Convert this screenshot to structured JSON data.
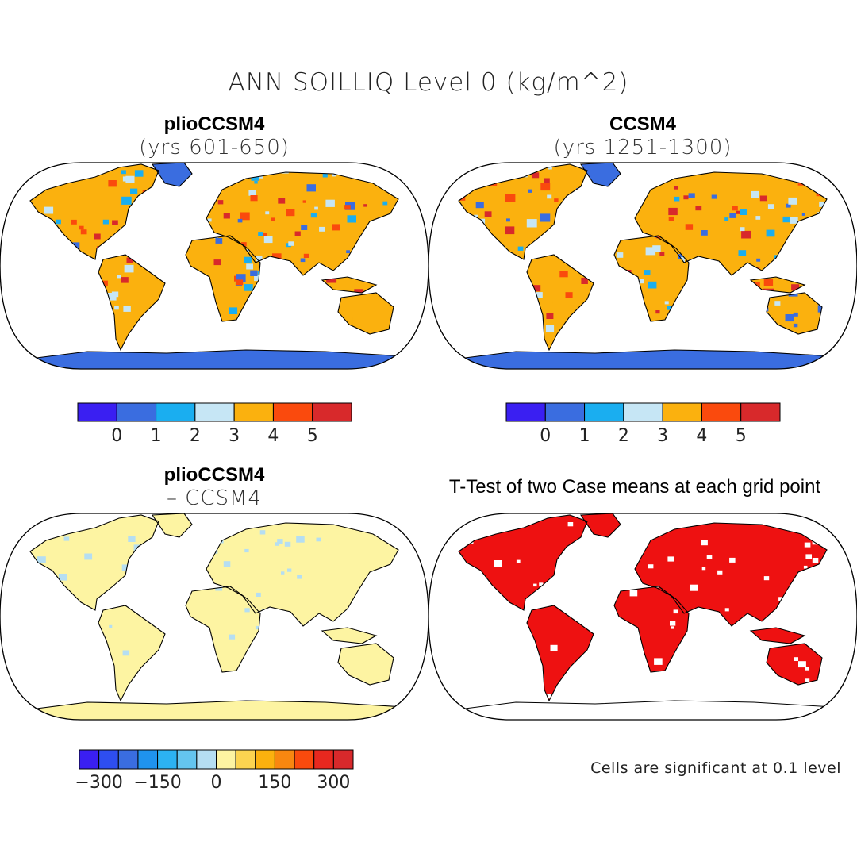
{
  "figure": {
    "title": "ANN SOILLIQ Level 0 (kg/m^2)"
  },
  "panels": [
    {
      "id": "plio",
      "title": "plioCCSM4",
      "subtitle": "(yrs 601-650)"
    },
    {
      "id": "ccsm",
      "title": "CCSM4",
      "subtitle": "(yrs 1251-1300)"
    },
    {
      "id": "diff",
      "title": "plioCCSM4",
      "subtitle": "– CCSM4"
    },
    {
      "id": "ttest",
      "title": "T-Test of two Case means at each grid point",
      "subtitle": ""
    }
  ],
  "colorbars": {
    "absolute": {
      "colors": [
        "#3a1ff2",
        "#3a6de0",
        "#1aaef0",
        "#c6e6f5",
        "#fbb10e",
        "#fa4a0d",
        "#d8292b"
      ],
      "tick_labels": [
        "0",
        "1",
        "2",
        "3",
        "4",
        "5"
      ]
    },
    "difference": {
      "colors": [
        "#3a1ff2",
        "#2e4ef0",
        "#3a6de0",
        "#1f93ee",
        "#2cb2f2",
        "#64c5ef",
        "#b5def2",
        "#fdf4a2",
        "#fcd450",
        "#fbb10e",
        "#f88710",
        "#fa4a0d",
        "#e8281f",
        "#d8292b"
      ],
      "tick_labels": [
        "-300",
        "-150",
        "0",
        "150",
        "300"
      ]
    }
  },
  "colors": {
    "land_absolute_dry": "#3a6de0",
    "land_absolute_wet": "#d8292b",
    "land_difference": "#fdf4a2",
    "difference_negative": "#b5def2",
    "significant": "#ee1111",
    "coastline": "#000000"
  },
  "footnote": "Cells are significant at 0.1 level",
  "chart_data": [
    {
      "type": "heatmap",
      "title": "plioCCSM4",
      "subtitle": "(yrs 601-650)",
      "colorbar_levels": [
        0,
        1,
        2,
        3,
        4,
        5
      ],
      "colorbar_labels": [
        "0",
        "1",
        "2",
        "3",
        "4",
        "5"
      ]
    },
    {
      "type": "heatmap",
      "title": "CCSM4",
      "subtitle": "(yrs 1251-1300)",
      "colorbar_levels": [
        0,
        1,
        2,
        3,
        4,
        5
      ],
      "colorbar_labels": [
        "0",
        "1",
        "2",
        "3",
        "4",
        "5"
      ]
    },
    {
      "type": "heatmap",
      "title": "plioCCSM4",
      "subtitle": "– CCSM4",
      "colorbar_levels": [
        -300,
        -150,
        0,
        150,
        300
      ],
      "colorbar_labels": [
        "-300",
        "-150",
        "0",
        "150",
        "300"
      ]
    },
    {
      "type": "heatmap",
      "title": "T-Test of two Case means at each grid point",
      "note": "Cells are significant at 0.1 level"
    }
  ]
}
